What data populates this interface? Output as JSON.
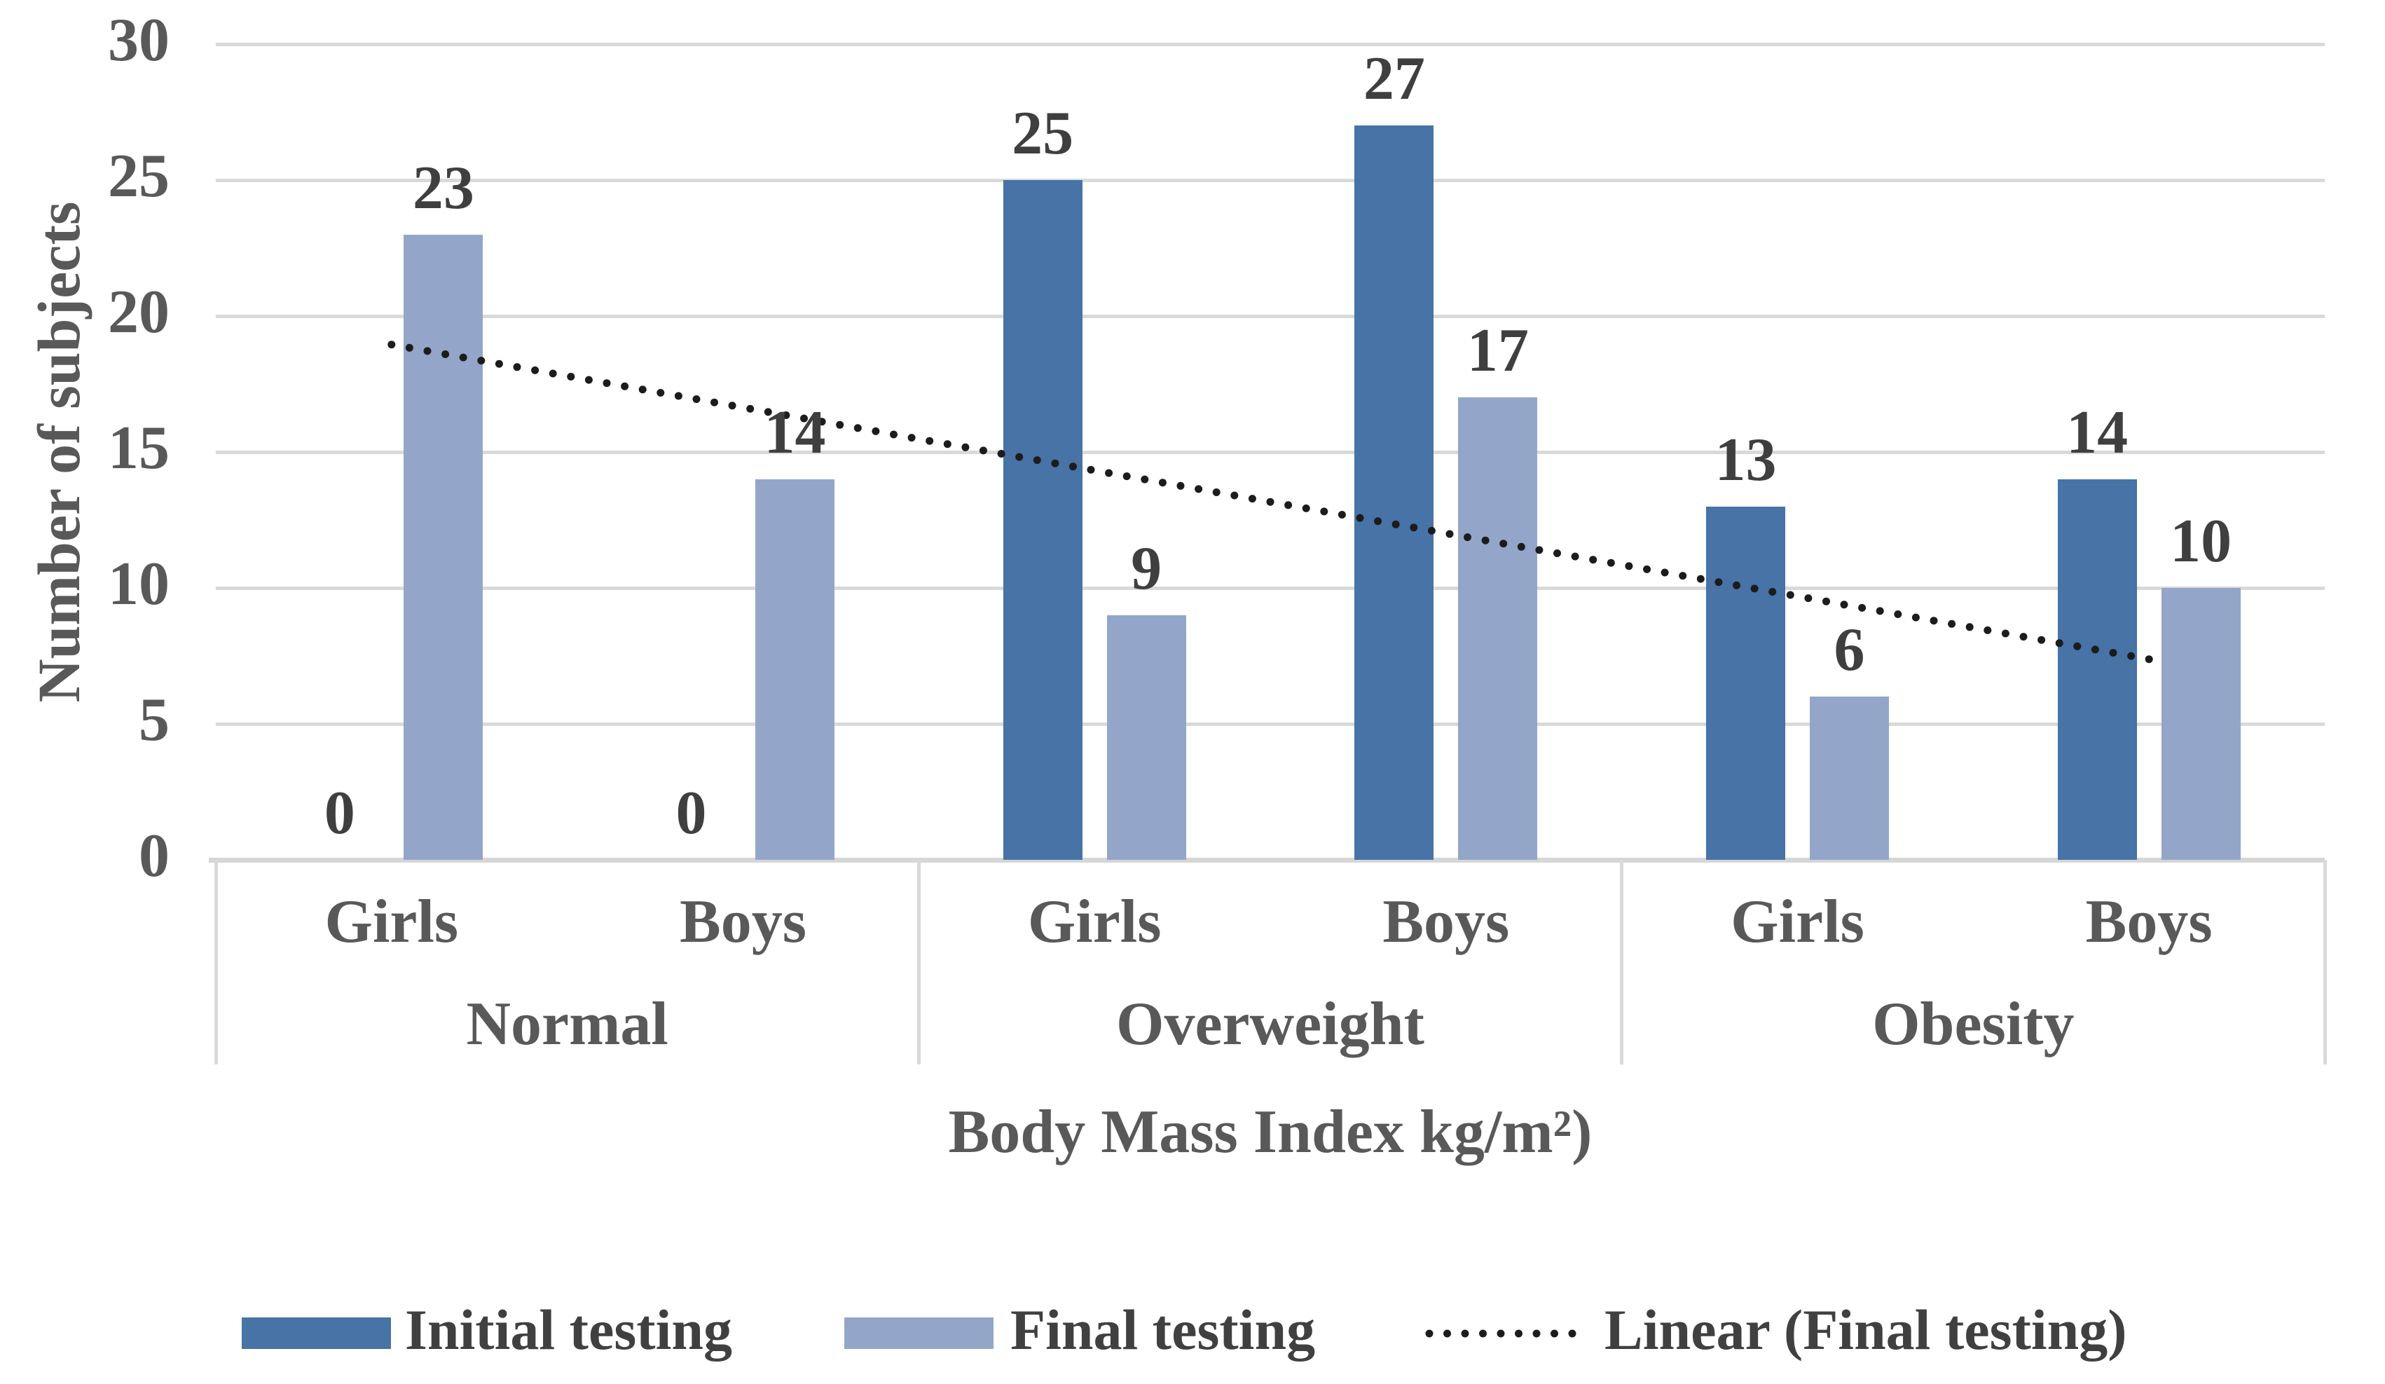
{
  "chart_data": {
    "type": "bar",
    "title": "",
    "ylabel": "Number of subjects",
    "xlabel": "Body Mass Index kg/m²)",
    "ylim": [
      0,
      30
    ],
    "yticks": [
      0,
      5,
      10,
      15,
      20,
      25,
      30
    ],
    "grid": true,
    "legend_position": "bottom",
    "groups": [
      "Normal",
      "Overweight",
      "Obesity"
    ],
    "categories": [
      "Girls",
      "Boys",
      "Girls",
      "Boys",
      "Girls",
      "Boys"
    ],
    "series": [
      {
        "name": "Initial testing",
        "color": "#4773A6",
        "values": [
          0,
          0,
          25,
          27,
          13,
          14
        ]
      },
      {
        "name": "Final testing",
        "color": "#93A6C9",
        "values": [
          23,
          14,
          9,
          17,
          6,
          10
        ]
      }
    ],
    "data_labels": {
      "initial_testing": [
        "0",
        "0",
        "25",
        "27",
        "13",
        "14"
      ],
      "final_testing": [
        "23",
        "14",
        "9",
        "17",
        "6",
        "10"
      ]
    },
    "trendline": {
      "name": "Linear (Final testing)",
      "start_value": 18.95,
      "end_value": 7.38,
      "color": "#1C1C1C",
      "style": "dotted"
    }
  },
  "colors": {
    "gridline": "#D9D9D9",
    "axis_line": "#D6D6D6",
    "tick_text": "#595959",
    "data_label_text": "#3F3F3F",
    "legend_text": "#404040",
    "background": "#FFFFFF"
  }
}
